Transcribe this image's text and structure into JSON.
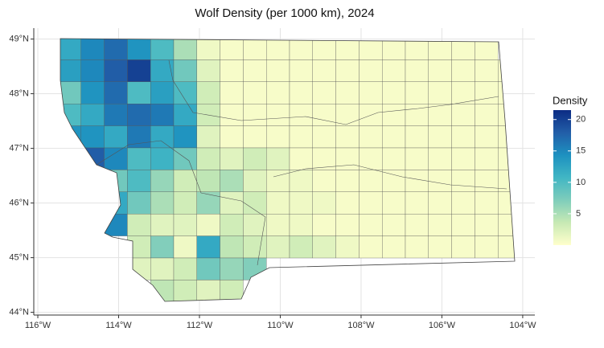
{
  "chart_data": {
    "type": "map",
    "title": "Wolf Density (per 1000 km), 2024",
    "legend_title": "Density",
    "xlim": [
      -116.1,
      -103.7
    ],
    "ylim": [
      43.95,
      49.2
    ],
    "xticks": [
      {
        "value": -116,
        "label": "116°W"
      },
      {
        "value": -114,
        "label": "114°W"
      },
      {
        "value": -112,
        "label": "112°W"
      },
      {
        "value": -110,
        "label": "110°W"
      },
      {
        "value": -108,
        "label": "108°W"
      },
      {
        "value": -106,
        "label": "106°W"
      },
      {
        "value": -104,
        "label": "104°W"
      }
    ],
    "yticks": [
      {
        "value": 44,
        "label": "44°N"
      },
      {
        "value": 45,
        "label": "45°N"
      },
      {
        "value": 46,
        "label": "46°N"
      },
      {
        "value": 47,
        "label": "47°N"
      },
      {
        "value": 48,
        "label": "48°N"
      },
      {
        "value": 49,
        "label": "49°N"
      }
    ],
    "colorbar_lim": [
      0,
      21.5
    ],
    "colorbar_ticks": [
      5,
      10,
      15,
      20
    ],
    "colors": [
      "#ffffcc",
      "#c7e9b4",
      "#7fcdbb",
      "#41b6c4",
      "#1d91c0",
      "#225ea8",
      "#0c2c84"
    ],
    "grid": true,
    "cells": [
      [
        12,
        15,
        17,
        14,
        10,
        5,
        1,
        0.5,
        0.5,
        0.5,
        0.5,
        0.5,
        0.5,
        0.5,
        0.5,
        0.5,
        0.5,
        0.5,
        0.5,
        null
      ],
      [
        13,
        15,
        18,
        20,
        12,
        8,
        2,
        0.5,
        0.5,
        0.5,
        0.5,
        0.5,
        0.5,
        0.5,
        0.5,
        0.5,
        0.5,
        0.5,
        0.5,
        0.5
      ],
      [
        8,
        14,
        17,
        10,
        13,
        10,
        3,
        0.5,
        0.5,
        0.5,
        0.5,
        0.5,
        0.5,
        0.5,
        0.5,
        0.5,
        0.5,
        0.5,
        0.5,
        0.5
      ],
      [
        10,
        12,
        16,
        17,
        16,
        12,
        3,
        0.5,
        0.5,
        0.5,
        0.5,
        0.5,
        0.5,
        0.5,
        0.5,
        0.5,
        0.5,
        0.5,
        0.5,
        0.5
      ],
      [
        14,
        14,
        12,
        16,
        12,
        14,
        2,
        0.5,
        0.5,
        0.5,
        0.5,
        0.5,
        0.5,
        0.5,
        0.5,
        0.5,
        0.5,
        0.5,
        0.5,
        0.5
      ],
      [
        null,
        18,
        15,
        10,
        11,
        8,
        3,
        2,
        3,
        2,
        0.5,
        0.5,
        0.5,
        0.5,
        0.5,
        0.5,
        0.5,
        0.5,
        0.5,
        0.5
      ],
      [
        null,
        null,
        8,
        10,
        6,
        3,
        4,
        5,
        2,
        1,
        1,
        0.5,
        0.5,
        0.5,
        0.5,
        0.5,
        0.5,
        0.5,
        0.5,
        0.5
      ],
      [
        null,
        null,
        12,
        8,
        5,
        3,
        6,
        2,
        3,
        1,
        1,
        1,
        0.5,
        0.5,
        0.5,
        0.5,
        0.5,
        0.5,
        0.5,
        0.5
      ],
      [
        null,
        null,
        15,
        3,
        2,
        2,
        1,
        3,
        2,
        1,
        1,
        0.5,
        0.5,
        0.5,
        0.5,
        0.5,
        0.5,
        0.5,
        0.5,
        0.5
      ],
      [
        null,
        null,
        null,
        3,
        7,
        1,
        12,
        4,
        3,
        2,
        3,
        2,
        1,
        0.5,
        0.5,
        0.5,
        0.5,
        0.5,
        0.5,
        0.5
      ],
      [
        null,
        null,
        null,
        2,
        2,
        3,
        8,
        6,
        7,
        null,
        null,
        null,
        null,
        null,
        null,
        null,
        null,
        null,
        null,
        null
      ],
      [
        null,
        null,
        null,
        null,
        4,
        3,
        2,
        3,
        null,
        null,
        null,
        null,
        null,
        null,
        null,
        null,
        null,
        null,
        null,
        null
      ]
    ]
  }
}
